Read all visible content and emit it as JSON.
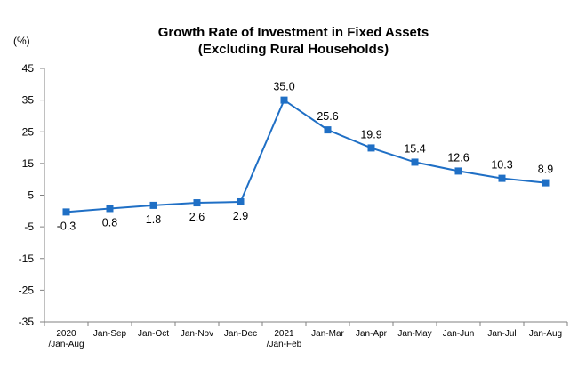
{
  "chart_data": {
    "type": "line",
    "title_line1": "Growth Rate of Investment in Fixed Assets",
    "title_line2": "(Excluding Rural Households)",
    "unit_label": "(%)",
    "ylim": [
      -35,
      45
    ],
    "yticks": [
      "45",
      "35",
      "25",
      "15",
      "5",
      "-5",
      "-15",
      "-25",
      "-35"
    ],
    "categories": [
      [
        "2020",
        "/Jan-Aug"
      ],
      [
        "Jan-Sep"
      ],
      [
        "Jan-Oct"
      ],
      [
        "Jan-Nov"
      ],
      [
        "Jan-Dec"
      ],
      [
        "2021",
        "/Jan-Feb"
      ],
      [
        "Jan-Mar"
      ],
      [
        "Jan-Apr"
      ],
      [
        "Jan-May"
      ],
      [
        "Jan-Jun"
      ],
      [
        "Jan-Jul"
      ],
      [
        "Jan-Aug"
      ]
    ],
    "values": [
      -0.3,
      0.8,
      1.8,
      2.6,
      2.9,
      35.0,
      25.6,
      19.9,
      15.4,
      12.6,
      10.3,
      8.9
    ],
    "value_labels": [
      "-0.3",
      "0.8",
      "1.8",
      "2.6",
      "2.9",
      "35.0",
      "25.6",
      "19.9",
      "15.4",
      "12.6",
      "10.3",
      "8.9"
    ],
    "label_below": [
      true,
      true,
      true,
      true,
      true,
      false,
      false,
      false,
      false,
      false,
      false,
      false
    ],
    "grid": false,
    "legend": "none",
    "series_color": "#1f6fc5",
    "axis_color": "#808080"
  }
}
